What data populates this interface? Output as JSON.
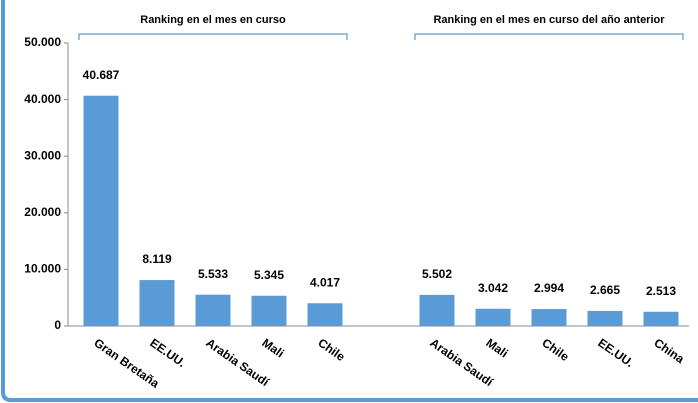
{
  "chart_data": {
    "type": "bar",
    "categories": [
      "Gran Bretaña",
      "EE.UU.",
      "Arabia Saudí",
      "Mali",
      "Chile",
      null,
      "Arabia Saudí",
      "Mali",
      "Chile",
      "EE.UU.",
      "China"
    ],
    "values": [
      40687,
      8119,
      5533,
      5345,
      4017,
      null,
      5502,
      3042,
      2994,
      2665,
      2513
    ],
    "value_labels": [
      "40.687",
      "8.119",
      "5.533",
      "5.345",
      "4.017",
      null,
      "5.502",
      "3.042",
      "2.994",
      "2.665",
      "2.513"
    ],
    "color": "#5b9bd5",
    "ylim": [
      0,
      50000
    ],
    "yticks": [
      0,
      {
        "value": 10000,
        "label": "10.000"
      },
      {
        "value": 20000,
        "label": "20.000"
      },
      {
        "value": 30000,
        "label": "30.000"
      },
      {
        "value": 40000,
        "label": "40.000"
      },
      {
        "value": 50000,
        "label": "50.000"
      }
    ],
    "annotations": [
      "Ranking en el mes en curso",
      "Ranking en el mes en curso del año anterior"
    ],
    "grid": false
  }
}
